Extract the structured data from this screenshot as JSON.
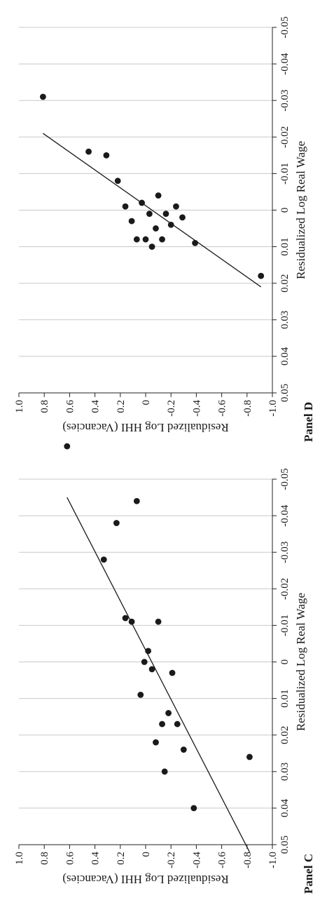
{
  "chart_data": [
    {
      "type": "scatter",
      "title": "Panel C",
      "xlabel": "Residualized Log HHI (Vacancies)",
      "ylabel": "Residualized Log Real Wage",
      "xlim": [
        -1.0,
        1.0
      ],
      "ylim": [
        -0.055,
        0.05
      ],
      "xticks": [
        "-1.0",
        "-0.8",
        "-0.6",
        "-0.4",
        "-0.2",
        "0",
        "0.2",
        "0.4",
        "0.6",
        "0.8",
        "1.0"
      ],
      "yticks": [
        "0.05",
        "0.04",
        "0.03",
        "0.02",
        "0.01",
        "0",
        "-0.01",
        "-0.02",
        "-0.03",
        "-0.04",
        "-0.05"
      ],
      "grid": "horizontal",
      "points": [
        {
          "x": -0.82,
          "y": 0.026
        },
        {
          "x": -0.38,
          "y": 0.04
        },
        {
          "x": -0.3,
          "y": 0.024
        },
        {
          "x": -0.25,
          "y": 0.017
        },
        {
          "x": -0.21,
          "y": 0.003
        },
        {
          "x": -0.18,
          "y": 0.014
        },
        {
          "x": -0.15,
          "y": 0.03
        },
        {
          "x": -0.13,
          "y": 0.017
        },
        {
          "x": -0.1,
          "y": -0.011
        },
        {
          "x": -0.08,
          "y": 0.022
        },
        {
          "x": -0.05,
          "y": 0.002
        },
        {
          "x": -0.02,
          "y": -0.003
        },
        {
          "x": 0.01,
          "y": 0.0
        },
        {
          "x": 0.04,
          "y": 0.009
        },
        {
          "x": 0.07,
          "y": -0.044
        },
        {
          "x": 0.11,
          "y": -0.011
        },
        {
          "x": 0.16,
          "y": -0.012
        },
        {
          "x": 0.23,
          "y": -0.038
        },
        {
          "x": 0.33,
          "y": -0.028
        },
        {
          "x": 0.62,
          "y": -0.059
        }
      ],
      "fit": {
        "x": [
          -0.82,
          0.62
        ],
        "y": [
          0.052,
          -0.045
        ]
      }
    },
    {
      "type": "scatter",
      "title": "Panel D",
      "xlabel": "Residualized Log HHI (Vacancies)",
      "ylabel": "Residualized Log Real Wage",
      "xlim": [
        -1.0,
        1.0
      ],
      "ylim": [
        -0.055,
        0.05
      ],
      "xticks": [
        "-1.0",
        "-0.8",
        "-0.6",
        "-0.4",
        "-0.2",
        "0",
        "0.2",
        "0.4",
        "0.6",
        "0.8",
        "1.0"
      ],
      "yticks": [
        "0.05",
        "0.04",
        "0.03",
        "0.02",
        "0.01",
        "0",
        "-0.01",
        "-0.02",
        "-0.03",
        "-0.04",
        "-0.05"
      ],
      "grid": "horizontal",
      "points": [
        {
          "x": -0.91,
          "y": 0.018
        },
        {
          "x": -0.39,
          "y": 0.009
        },
        {
          "x": -0.29,
          "y": 0.002
        },
        {
          "x": -0.24,
          "y": -0.001
        },
        {
          "x": -0.2,
          "y": 0.004
        },
        {
          "x": -0.16,
          "y": 0.001
        },
        {
          "x": -0.13,
          "y": 0.008
        },
        {
          "x": -0.1,
          "y": -0.004
        },
        {
          "x": -0.08,
          "y": 0.005
        },
        {
          "x": -0.05,
          "y": 0.01
        },
        {
          "x": -0.03,
          "y": 0.001
        },
        {
          "x": 0.0,
          "y": 0.008
        },
        {
          "x": 0.03,
          "y": -0.002
        },
        {
          "x": 0.07,
          "y": 0.008
        },
        {
          "x": 0.11,
          "y": 0.003
        },
        {
          "x": 0.16,
          "y": -0.001
        },
        {
          "x": 0.22,
          "y": -0.008
        },
        {
          "x": 0.31,
          "y": -0.015
        },
        {
          "x": 0.45,
          "y": -0.016
        },
        {
          "x": 0.81,
          "y": -0.031
        }
      ],
      "fit": {
        "x": [
          -0.91,
          0.81
        ],
        "y": [
          0.021,
          -0.021
        ]
      }
    }
  ]
}
